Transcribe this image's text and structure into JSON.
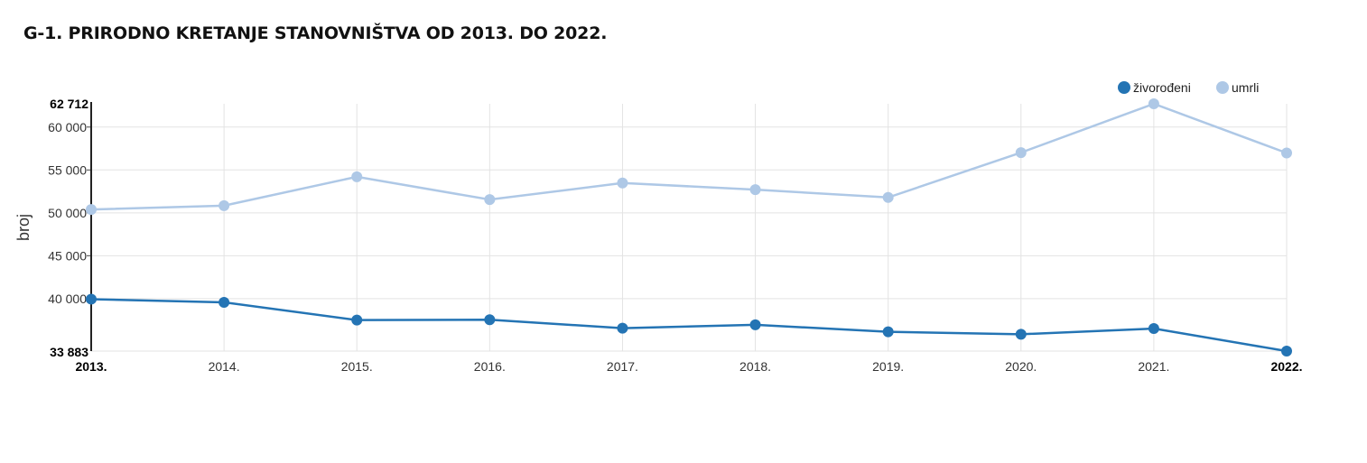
{
  "chart_data": {
    "type": "line",
    "title": "G-1. PRIRODNO KRETANJE STANOVNIŠTVA OD 2013. DO 2022.",
    "xlabel": "",
    "ylabel": "broj",
    "categories": [
      "2013.",
      "2014.",
      "2015.",
      "2016.",
      "2017.",
      "2018.",
      "2019.",
      "2020.",
      "2021.",
      "2022."
    ],
    "series": [
      {
        "name": "živorođeni",
        "color": "#2474b4",
        "values": [
          39939,
          39566,
          37503,
          37537,
          36556,
          36945,
          36135,
          35845,
          36508,
          33883
        ]
      },
      {
        "name": "umrli",
        "color": "#aec8e6",
        "values": [
          50386,
          50839,
          54205,
          51542,
          53477,
          52706,
          51794,
          57023,
          62712,
          56979
        ]
      }
    ],
    "ylim": [
      33883,
      62712
    ],
    "y_ticks": [
      40000,
      45000,
      50000,
      55000,
      60000
    ],
    "y_tick_labels": [
      "40 000",
      "45 000",
      "50 000",
      "55 000",
      "60 000"
    ],
    "y_min_label": "33 883",
    "y_max_label": "62 712",
    "grid": true,
    "legend_position": "top-right"
  }
}
